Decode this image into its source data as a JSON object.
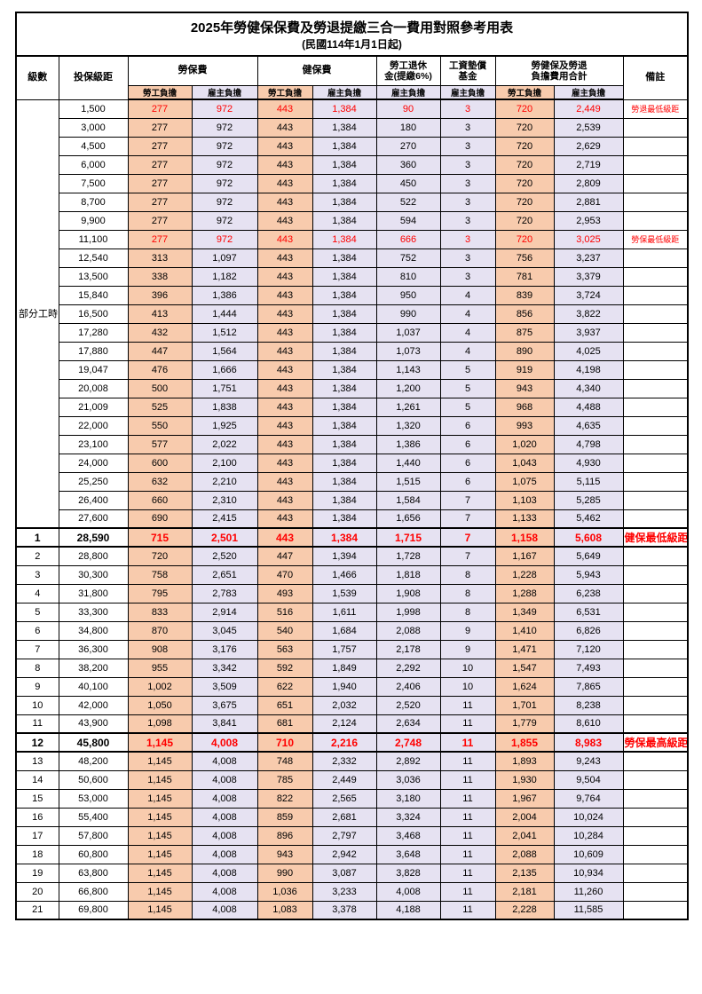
{
  "title": "2025年勞健保保費及勞退提繳三合一費用對照參考用表",
  "subtitle": "(民國114年1月1日起)",
  "colors": {
    "employee_bg": "#F8CBAD",
    "employer_bg": "#E6E2F2",
    "highlight_text": "#FF0000"
  },
  "header": {
    "level": "級數",
    "bracket": "投保級距",
    "labor_insurance": "勞保費",
    "health_insurance": "健保費",
    "pension_line1": "勞工退休",
    "pension_line2": "金(提繳6%)",
    "wage_fund_line1": "工資墊償",
    "wage_fund_line2": "基金",
    "total_line1": "勞健保及勞退",
    "total_line2": "負擔費用合計",
    "remark": "備註",
    "employee": "勞工負擔",
    "employer": "雇主負擔"
  },
  "rows": [
    {
      "level": "部分工時",
      "levelSpan": 23,
      "bracket": "1,500",
      "values": [
        "277",
        "972",
        "443",
        "1,384",
        "90",
        "3",
        "720",
        "2,449"
      ],
      "remark": "勞退最低級距",
      "highlight": true
    },
    {
      "level": null,
      "bracket": "3,000",
      "values": [
        "277",
        "972",
        "443",
        "1,384",
        "180",
        "3",
        "720",
        "2,539"
      ],
      "remark": ""
    },
    {
      "level": null,
      "bracket": "4,500",
      "values": [
        "277",
        "972",
        "443",
        "1,384",
        "270",
        "3",
        "720",
        "2,629"
      ],
      "remark": ""
    },
    {
      "level": null,
      "bracket": "6,000",
      "values": [
        "277",
        "972",
        "443",
        "1,384",
        "360",
        "3",
        "720",
        "2,719"
      ],
      "remark": ""
    },
    {
      "level": null,
      "bracket": "7,500",
      "values": [
        "277",
        "972",
        "443",
        "1,384",
        "450",
        "3",
        "720",
        "2,809"
      ],
      "remark": ""
    },
    {
      "level": null,
      "bracket": "8,700",
      "values": [
        "277",
        "972",
        "443",
        "1,384",
        "522",
        "3",
        "720",
        "2,881"
      ],
      "remark": ""
    },
    {
      "level": null,
      "bracket": "9,900",
      "values": [
        "277",
        "972",
        "443",
        "1,384",
        "594",
        "3",
        "720",
        "2,953"
      ],
      "remark": ""
    },
    {
      "level": null,
      "bracket": "11,100",
      "values": [
        "277",
        "972",
        "443",
        "1,384",
        "666",
        "3",
        "720",
        "3,025"
      ],
      "remark": "勞保最低級距",
      "highlight": true
    },
    {
      "level": null,
      "bracket": "12,540",
      "values": [
        "313",
        "1,097",
        "443",
        "1,384",
        "752",
        "3",
        "756",
        "3,237"
      ],
      "remark": ""
    },
    {
      "level": null,
      "bracket": "13,500",
      "values": [
        "338",
        "1,182",
        "443",
        "1,384",
        "810",
        "3",
        "781",
        "3,379"
      ],
      "remark": ""
    },
    {
      "level": null,
      "bracket": "15,840",
      "values": [
        "396",
        "1,386",
        "443",
        "1,384",
        "950",
        "4",
        "839",
        "3,724"
      ],
      "remark": ""
    },
    {
      "level": null,
      "bracket": "16,500",
      "values": [
        "413",
        "1,444",
        "443",
        "1,384",
        "990",
        "4",
        "856",
        "3,822"
      ],
      "remark": ""
    },
    {
      "level": null,
      "bracket": "17,280",
      "values": [
        "432",
        "1,512",
        "443",
        "1,384",
        "1,037",
        "4",
        "875",
        "3,937"
      ],
      "remark": ""
    },
    {
      "level": null,
      "bracket": "17,880",
      "values": [
        "447",
        "1,564",
        "443",
        "1,384",
        "1,073",
        "4",
        "890",
        "4,025"
      ],
      "remark": ""
    },
    {
      "level": null,
      "bracket": "19,047",
      "values": [
        "476",
        "1,666",
        "443",
        "1,384",
        "1,143",
        "5",
        "919",
        "4,198"
      ],
      "remark": ""
    },
    {
      "level": null,
      "bracket": "20,008",
      "values": [
        "500",
        "1,751",
        "443",
        "1,384",
        "1,200",
        "5",
        "943",
        "4,340"
      ],
      "remark": ""
    },
    {
      "level": null,
      "bracket": "21,009",
      "values": [
        "525",
        "1,838",
        "443",
        "1,384",
        "1,261",
        "5",
        "968",
        "4,488"
      ],
      "remark": ""
    },
    {
      "level": null,
      "bracket": "22,000",
      "values": [
        "550",
        "1,925",
        "443",
        "1,384",
        "1,320",
        "6",
        "993",
        "4,635"
      ],
      "remark": ""
    },
    {
      "level": null,
      "bracket": "23,100",
      "values": [
        "577",
        "2,022",
        "443",
        "1,384",
        "1,386",
        "6",
        "1,020",
        "4,798"
      ],
      "remark": ""
    },
    {
      "level": null,
      "bracket": "24,000",
      "values": [
        "600",
        "2,100",
        "443",
        "1,384",
        "1,440",
        "6",
        "1,043",
        "4,930"
      ],
      "remark": ""
    },
    {
      "level": null,
      "bracket": "25,250",
      "values": [
        "632",
        "2,210",
        "443",
        "1,384",
        "1,515",
        "6",
        "1,075",
        "5,115"
      ],
      "remark": ""
    },
    {
      "level": null,
      "bracket": "26,400",
      "values": [
        "660",
        "2,310",
        "443",
        "1,384",
        "1,584",
        "7",
        "1,103",
        "5,285"
      ],
      "remark": ""
    },
    {
      "level": null,
      "bracket": "27,600",
      "values": [
        "690",
        "2,415",
        "443",
        "1,384",
        "1,656",
        "7",
        "1,133",
        "5,462"
      ],
      "remark": ""
    },
    {
      "level": "1",
      "bracket": "28,590",
      "values": [
        "715",
        "2,501",
        "443",
        "1,384",
        "1,715",
        "7",
        "1,158",
        "5,608"
      ],
      "remark": "健保最低級距",
      "highlight": true,
      "emphasis": true,
      "boxed": true
    },
    {
      "level": "2",
      "bracket": "28,800",
      "values": [
        "720",
        "2,520",
        "447",
        "1,394",
        "1,728",
        "7",
        "1,167",
        "5,649"
      ],
      "remark": ""
    },
    {
      "level": "3",
      "bracket": "30,300",
      "values": [
        "758",
        "2,651",
        "470",
        "1,466",
        "1,818",
        "8",
        "1,228",
        "5,943"
      ],
      "remark": ""
    },
    {
      "level": "4",
      "bracket": "31,800",
      "values": [
        "795",
        "2,783",
        "493",
        "1,539",
        "1,908",
        "8",
        "1,288",
        "6,238"
      ],
      "remark": ""
    },
    {
      "level": "5",
      "bracket": "33,300",
      "values": [
        "833",
        "2,914",
        "516",
        "1,611",
        "1,998",
        "8",
        "1,349",
        "6,531"
      ],
      "remark": ""
    },
    {
      "level": "6",
      "bracket": "34,800",
      "values": [
        "870",
        "3,045",
        "540",
        "1,684",
        "2,088",
        "9",
        "1,410",
        "6,826"
      ],
      "remark": ""
    },
    {
      "level": "7",
      "bracket": "36,300",
      "values": [
        "908",
        "3,176",
        "563",
        "1,757",
        "2,178",
        "9",
        "1,471",
        "7,120"
      ],
      "remark": ""
    },
    {
      "level": "8",
      "bracket": "38,200",
      "values": [
        "955",
        "3,342",
        "592",
        "1,849",
        "2,292",
        "10",
        "1,547",
        "7,493"
      ],
      "remark": ""
    },
    {
      "level": "9",
      "bracket": "40,100",
      "values": [
        "1,002",
        "3,509",
        "622",
        "1,940",
        "2,406",
        "10",
        "1,624",
        "7,865"
      ],
      "remark": ""
    },
    {
      "level": "10",
      "bracket": "42,000",
      "values": [
        "1,050",
        "3,675",
        "651",
        "2,032",
        "2,520",
        "11",
        "1,701",
        "8,238"
      ],
      "remark": ""
    },
    {
      "level": "11",
      "bracket": "43,900",
      "values": [
        "1,098",
        "3,841",
        "681",
        "2,124",
        "2,634",
        "11",
        "1,779",
        "8,610"
      ],
      "remark": ""
    },
    {
      "level": "12",
      "bracket": "45,800",
      "values": [
        "1,145",
        "4,008",
        "710",
        "2,216",
        "2,748",
        "11",
        "1,855",
        "8,983"
      ],
      "remark": "勞保最高級距",
      "highlight": true,
      "emphasis": true,
      "boxed": true
    },
    {
      "level": "13",
      "bracket": "48,200",
      "values": [
        "1,145",
        "4,008",
        "748",
        "2,332",
        "2,892",
        "11",
        "1,893",
        "9,243"
      ],
      "remark": ""
    },
    {
      "level": "14",
      "bracket": "50,600",
      "values": [
        "1,145",
        "4,008",
        "785",
        "2,449",
        "3,036",
        "11",
        "1,930",
        "9,504"
      ],
      "remark": ""
    },
    {
      "level": "15",
      "bracket": "53,000",
      "values": [
        "1,145",
        "4,008",
        "822",
        "2,565",
        "3,180",
        "11",
        "1,967",
        "9,764"
      ],
      "remark": ""
    },
    {
      "level": "16",
      "bracket": "55,400",
      "values": [
        "1,145",
        "4,008",
        "859",
        "2,681",
        "3,324",
        "11",
        "2,004",
        "10,024"
      ],
      "remark": ""
    },
    {
      "level": "17",
      "bracket": "57,800",
      "values": [
        "1,145",
        "4,008",
        "896",
        "2,797",
        "3,468",
        "11",
        "2,041",
        "10,284"
      ],
      "remark": ""
    },
    {
      "level": "18",
      "bracket": "60,800",
      "values": [
        "1,145",
        "4,008",
        "943",
        "2,942",
        "3,648",
        "11",
        "2,088",
        "10,609"
      ],
      "remark": ""
    },
    {
      "level": "19",
      "bracket": "63,800",
      "values": [
        "1,145",
        "4,008",
        "990",
        "3,087",
        "3,828",
        "11",
        "2,135",
        "10,934"
      ],
      "remark": ""
    },
    {
      "level": "20",
      "bracket": "66,800",
      "values": [
        "1,145",
        "4,008",
        "1,036",
        "3,233",
        "4,008",
        "11",
        "2,181",
        "11,260"
      ],
      "remark": ""
    },
    {
      "level": "21",
      "bracket": "69,800",
      "values": [
        "1,145",
        "4,008",
        "1,083",
        "3,378",
        "4,188",
        "11",
        "2,228",
        "11,585"
      ],
      "remark": ""
    }
  ]
}
